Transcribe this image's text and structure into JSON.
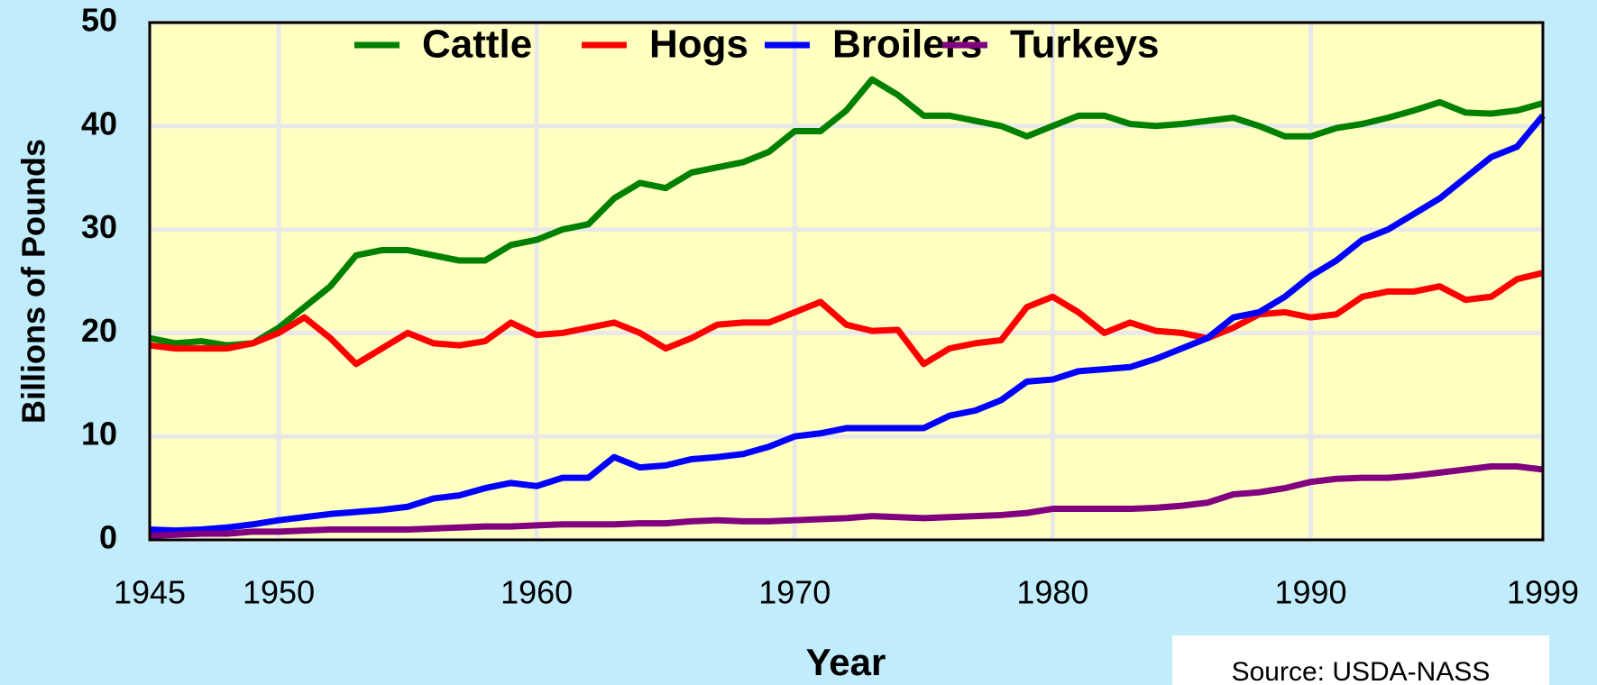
{
  "chart_data": {
    "type": "line",
    "x_label": "Year",
    "y_label": "Billions of Pounds",
    "source": "Source: USDA-NASS",
    "x": [
      1945,
      1946,
      1947,
      1948,
      1949,
      1950,
      1951,
      1952,
      1953,
      1954,
      1955,
      1956,
      1957,
      1958,
      1959,
      1960,
      1961,
      1962,
      1963,
      1964,
      1965,
      1966,
      1967,
      1968,
      1969,
      1970,
      1971,
      1972,
      1973,
      1974,
      1975,
      1976,
      1977,
      1978,
      1979,
      1980,
      1981,
      1982,
      1983,
      1984,
      1985,
      1986,
      1987,
      1988,
      1989,
      1990,
      1991,
      1992,
      1993,
      1994,
      1995,
      1996,
      1997,
      1998,
      1999
    ],
    "series": [
      {
        "name": "Cattle",
        "color": "#008000",
        "values": [
          19.5,
          19,
          19.2,
          18.8,
          19,
          20.5,
          22.5,
          24.5,
          27.5,
          28,
          28,
          27.5,
          27,
          27,
          28.5,
          29,
          30,
          30.5,
          33,
          34.5,
          34,
          35.5,
          36,
          36.5,
          37.5,
          39.5,
          39.5,
          41.5,
          44.5,
          43,
          41,
          41,
          40.5,
          40,
          39,
          40,
          41,
          41,
          40.2,
          40,
          40.2,
          40.5,
          40.8,
          40,
          39,
          39,
          39.8,
          40.2,
          40.8,
          41.5,
          42.3,
          41.3,
          41.2,
          41.5,
          42.2
        ]
      },
      {
        "name": "Hogs",
        "color": "#ff0000",
        "values": [
          18.8,
          18.5,
          18.5,
          18.5,
          19,
          20,
          21.5,
          19.5,
          17,
          18.5,
          20,
          19,
          18.8,
          19.2,
          21,
          19.8,
          20,
          20.5,
          21,
          20,
          18.5,
          19.5,
          20.8,
          21,
          21,
          22,
          23,
          20.8,
          20.2,
          20.3,
          17,
          18.5,
          19,
          19.3,
          22.5,
          23.5,
          22,
          20,
          21,
          20.2,
          20,
          19.5,
          20.5,
          21.8,
          22,
          21.5,
          21.8,
          23.5,
          24,
          24,
          24.5,
          23.2,
          23.5,
          25.2,
          25.8
        ]
      },
      {
        "name": "Broilers",
        "color": "#0000ff",
        "values": [
          1,
          0.9,
          1,
          1.2,
          1.5,
          1.9,
          2.2,
          2.5,
          2.7,
          2.9,
          3.2,
          4,
          4.3,
          5,
          5.5,
          5.2,
          6,
          6,
          8,
          7,
          7.2,
          7.8,
          8,
          8.3,
          9,
          10,
          10.3,
          10.8,
          10.8,
          10.8,
          10.8,
          12,
          12.5,
          13.5,
          15.3,
          15.5,
          16.3,
          16.5,
          16.7,
          17.5,
          18.5,
          19.5,
          21.5,
          22,
          23.5,
          25.5,
          27,
          29,
          30,
          31.5,
          33,
          35,
          37,
          38,
          41
        ]
      },
      {
        "name": "Turkeys",
        "color": "#800080",
        "values": [
          0.4,
          0.5,
          0.6,
          0.6,
          0.8,
          0.8,
          0.9,
          1,
          1,
          1,
          1,
          1.1,
          1.2,
          1.3,
          1.3,
          1.4,
          1.5,
          1.5,
          1.5,
          1.6,
          1.6,
          1.8,
          1.9,
          1.8,
          1.8,
          1.9,
          2,
          2.1,
          2.3,
          2.2,
          2.1,
          2.2,
          2.3,
          2.4,
          2.6,
          3,
          3,
          3,
          3,
          3.1,
          3.3,
          3.6,
          4.4,
          4.6,
          5,
          5.6,
          5.9,
          6,
          6,
          6.2,
          6.5,
          6.8,
          7.1,
          7.1,
          6.8
        ]
      }
    ],
    "xlim": [
      1945,
      1999
    ],
    "xticks": [
      1945,
      1950,
      1960,
      1970,
      1980,
      1990,
      1999
    ],
    "ylim": [
      0,
      50
    ],
    "yticks": [
      0,
      10,
      20,
      30,
      40,
      50
    ],
    "grid": true,
    "legend": "top"
  }
}
